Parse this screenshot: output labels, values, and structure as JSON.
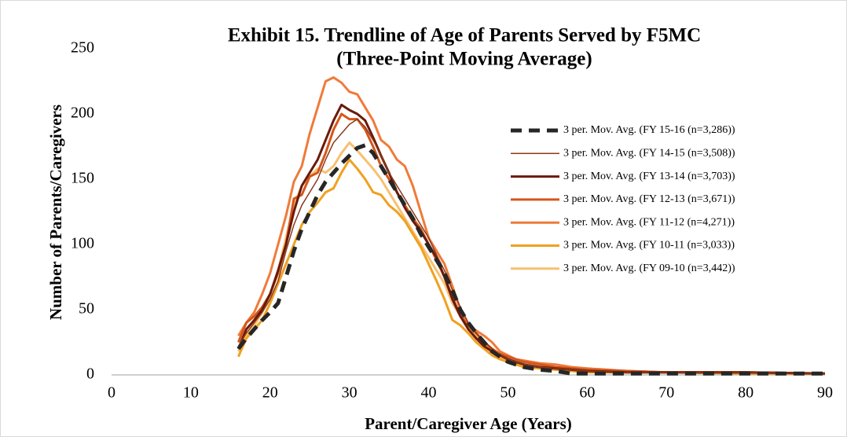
{
  "chart_data": {
    "type": "line",
    "title": "Exhibit 15. Trendline of Age of Parents Served by F5MC",
    "subtitle": "(Three-Point Moving Average)",
    "x_label": "Parent/Caregiver Age (Years)",
    "y_label": "Number of Parents/Caregivers",
    "x": [
      16,
      17,
      18,
      19,
      20,
      21,
      22,
      23,
      24,
      25,
      26,
      27,
      28,
      29,
      30,
      31,
      32,
      33,
      34,
      35,
      36,
      37,
      38,
      39,
      40,
      41,
      42,
      43,
      44,
      45,
      46,
      47,
      48,
      49,
      50,
      51,
      52,
      54,
      56,
      58,
      60,
      65,
      70,
      80,
      90
    ],
    "series": [
      {
        "name": "3 per. Mov. Avg.  (FY 15-16 (n=3,286))",
        "color": "#262626",
        "width": 5,
        "dashed": true,
        "values": [
          20,
          28,
          35,
          42,
          48,
          55,
          75,
          95,
          112,
          125,
          138,
          148,
          155,
          162,
          168,
          174,
          176,
          170,
          160,
          150,
          140,
          130,
          120,
          108,
          98,
          88,
          78,
          65,
          50,
          40,
          32,
          25,
          18,
          14,
          10,
          8,
          6,
          4,
          3,
          1,
          1,
          1,
          1,
          1,
          1
        ]
      },
      {
        "name": "3 per. Mov. Avg.  (FY 14-15 (n=3,508))",
        "color": "#8b3a1a",
        "width": 1.5,
        "dashed": false,
        "values": [
          22,
          32,
          40,
          48,
          58,
          72,
          95,
          115,
          130,
          140,
          150,
          165,
          178,
          185,
          192,
          196,
          190,
          180,
          168,
          155,
          145,
          135,
          125,
          115,
          105,
          92,
          80,
          65,
          52,
          40,
          32,
          26,
          20,
          15,
          12,
          10,
          8,
          6,
          5,
          4,
          3,
          2,
          2,
          2,
          1
        ]
      },
      {
        "name": "3 per. Mov. Avg.  (FY 13-14 (n=3,703))",
        "color": "#6b1a0a",
        "width": 3,
        "dashed": false,
        "values": [
          20,
          35,
          42,
          50,
          62,
          80,
          100,
          125,
          145,
          155,
          165,
          180,
          195,
          207,
          203,
          200,
          195,
          182,
          168,
          155,
          140,
          128,
          118,
          110,
          100,
          90,
          75,
          58,
          45,
          35,
          28,
          22,
          18,
          15,
          12,
          10,
          8,
          6,
          5,
          4,
          3,
          2,
          2,
          2,
          1
        ]
      },
      {
        "name": "3 per. Mov. Avg.  (FY 12-13 (n=3,671))",
        "color": "#d4561a",
        "width": 3,
        "dashed": false,
        "values": [
          25,
          40,
          45,
          52,
          62,
          78,
          100,
          135,
          138,
          152,
          155,
          170,
          188,
          200,
          196,
          196,
          188,
          175,
          160,
          150,
          140,
          130,
          120,
          112,
          100,
          88,
          75,
          60,
          45,
          38,
          32,
          25,
          20,
          16,
          14,
          12,
          10,
          8,
          6,
          5,
          4,
          3,
          2,
          2,
          1
        ]
      },
      {
        "name": "3 per. Mov. Avg.  (FY 11-12 (n=4,271))",
        "color": "#f07a3a",
        "width": 3,
        "dashed": false,
        "values": [
          30,
          40,
          48,
          62,
          78,
          100,
          122,
          148,
          160,
          185,
          205,
          225,
          228,
          224,
          217,
          215,
          205,
          195,
          180,
          175,
          165,
          160,
          145,
          125,
          105,
          95,
          85,
          68,
          50,
          38,
          34,
          30,
          25,
          18,
          15,
          12,
          11,
          9,
          8,
          6,
          5,
          3,
          2,
          2,
          1
        ]
      },
      {
        "name": "3 per. Mov. Avg.  (FY 10-11 (n=3,033))",
        "color": "#f0a020",
        "width": 3,
        "dashed": false,
        "values": [
          14,
          28,
          35,
          42,
          55,
          70,
          85,
          100,
          115,
          125,
          132,
          140,
          143,
          155,
          165,
          158,
          150,
          140,
          138,
          130,
          125,
          118,
          108,
          98,
          85,
          72,
          58,
          42,
          38,
          32,
          25,
          20,
          15,
          12,
          10,
          8,
          6,
          5,
          4,
          3,
          2,
          2,
          2,
          1,
          1
        ]
      },
      {
        "name": "3 per. Mov. Avg.  (FY 09-10 (n=3,442))",
        "color": "#f8c070",
        "width": 3,
        "dashed": false,
        "values": [
          18,
          30,
          38,
          48,
          62,
          80,
          105,
          130,
          145,
          152,
          158,
          155,
          160,
          170,
          178,
          172,
          165,
          158,
          150,
          140,
          130,
          120,
          110,
          100,
          90,
          80,
          70,
          55,
          45,
          36,
          30,
          24,
          18,
          14,
          11,
          9,
          7,
          6,
          5,
          4,
          3,
          2,
          2,
          2,
          1
        ]
      }
    ],
    "xlim": [
      0,
      90
    ],
    "xticks": [
      0,
      10,
      20,
      30,
      40,
      50,
      60,
      70,
      80,
      90
    ],
    "ylim": [
      0,
      250
    ],
    "yticks": [
      0,
      50,
      100,
      150,
      200,
      250
    ],
    "grid": false,
    "legend": "right"
  }
}
